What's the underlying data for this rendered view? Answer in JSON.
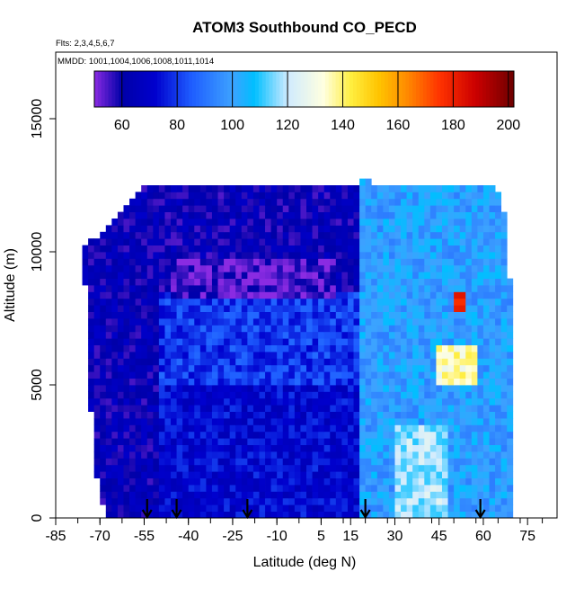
{
  "chart_data": {
    "type": "heatmap",
    "title": "ATOM3 Southbound CO_PECD",
    "flights_note": "Flts: 2,3,4,5,6,7",
    "dates_note": "MMDD: 1001,1004,1006,1008,1011,1014",
    "xlabel": "Latitude (deg N)",
    "ylabel": "Altitude (m)",
    "xlim": [
      -85,
      85
    ],
    "ylim": [
      0,
      17500
    ],
    "x_ticks": [
      -85,
      -70,
      -55,
      -40,
      -25,
      -10,
      5,
      15,
      30,
      45,
      60,
      75
    ],
    "y_ticks": [
      0,
      5000,
      10000,
      15000
    ],
    "colorbar": {
      "range": [
        50,
        202
      ],
      "ticks": [
        60,
        80,
        100,
        120,
        140,
        160,
        180,
        200
      ],
      "stops": [
        {
          "v": 50,
          "c": "#8a2be2"
        },
        {
          "v": 60,
          "c": "#0000a8"
        },
        {
          "v": 72,
          "c": "#0000cd"
        },
        {
          "v": 85,
          "c": "#1e5cff"
        },
        {
          "v": 100,
          "c": "#3da2ff"
        },
        {
          "v": 108,
          "c": "#00bfff"
        },
        {
          "v": 120,
          "c": "#cfeaff"
        },
        {
          "v": 133,
          "c": "#ffffe0"
        },
        {
          "v": 143,
          "c": "#ffee40"
        },
        {
          "v": 153,
          "c": "#ffc400"
        },
        {
          "v": 163,
          "c": "#ff8c00"
        },
        {
          "v": 175,
          "c": "#ff3300"
        },
        {
          "v": 188,
          "c": "#cc0000"
        },
        {
          "v": 202,
          "c": "#6e0000"
        }
      ]
    },
    "profile_markers_lat": [
      -54,
      -44,
      -20,
      20,
      59
    ],
    "coverage": {
      "left_edge": [
        [
          0,
          -68
        ],
        [
          2000,
          -72
        ],
        [
          4000,
          -73
        ],
        [
          6000,
          -73.5
        ],
        [
          8000,
          -74.5
        ],
        [
          10000,
          -76
        ]
      ],
      "right_edge": [
        [
          0,
          70.5
        ],
        [
          6000,
          70.5
        ],
        [
          7500,
          70
        ],
        [
          10000,
          68
        ]
      ],
      "top_profile": [
        [
          -76,
          10000
        ],
        [
          -72,
          10500
        ],
        [
          -66,
          11000
        ],
        [
          -60,
          11800
        ],
        [
          -56,
          12400
        ],
        [
          -12,
          12400
        ],
        [
          18,
          12400
        ],
        [
          20,
          12900
        ],
        [
          22,
          12400
        ],
        [
          64,
          12400
        ],
        [
          66,
          11900
        ],
        [
          68,
          11000
        ],
        [
          70,
          10000
        ]
      ]
    },
    "note": "Color = CO (ppb) as function of latitude and altitude; approximate values read from image",
    "regions": [
      {
        "lat": [
          -65,
          18
        ],
        "alt": [
          8500,
          12400
        ],
        "value": 62
      },
      {
        "lat": [
          -45,
          10
        ],
        "alt": [
          8200,
          9800
        ],
        "value": 54
      },
      {
        "lat": [
          -50,
          18
        ],
        "alt": [
          5000,
          8000
        ],
        "value": 80
      },
      {
        "lat": [
          -50,
          18
        ],
        "alt": [
          0,
          5000
        ],
        "value": 72
      },
      {
        "lat": [
          -76,
          -50
        ],
        "alt": [
          0,
          11500
        ],
        "value": 63
      },
      {
        "lat": [
          18,
          70
        ],
        "alt": [
          0,
          12400
        ],
        "value": 100
      },
      {
        "lat": [
          30,
          48
        ],
        "alt": [
          0,
          3500
        ],
        "value": 118
      },
      {
        "lat": [
          45,
          58
        ],
        "alt": [
          5000,
          6500
        ],
        "value": 135
      },
      {
        "lat": [
          50,
          54
        ],
        "alt": [
          7800,
          8400
        ],
        "value": 180
      }
    ]
  }
}
